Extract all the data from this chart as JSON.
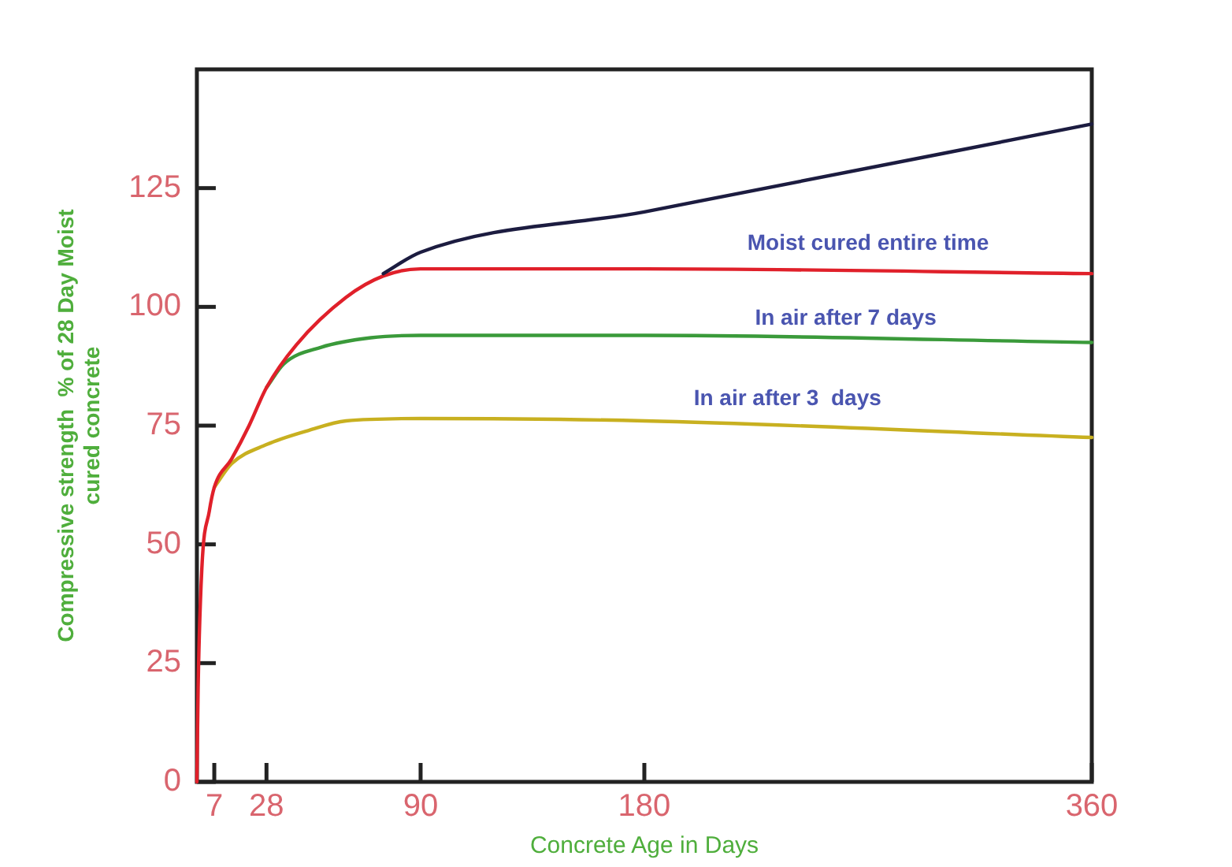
{
  "chart_data": {
    "type": "line",
    "xlabel": "Concrete Age in Days",
    "ylabel": "Compressive strength  % of 28 Day Moist cured concrete",
    "xlim": [
      0,
      360
    ],
    "xticks": [
      7,
      28,
      90,
      180,
      360
    ],
    "ylim": [
      0,
      150
    ],
    "yticks": [
      0,
      25,
      50,
      75,
      100,
      125
    ],
    "grid": false,
    "legend": false,
    "marker": "none",
    "line_style": "solid",
    "series": [
      {
        "color": "#1c1c40",
        "x": [
          75,
          90,
          180,
          360
        ],
        "values": [
          107,
          111.5,
          120,
          138.5
        ]
      },
      {
        "color": "#e0202a",
        "x": [
          0,
          0.5,
          2,
          5,
          7,
          14,
          21,
          28,
          40,
          60,
          75,
          90,
          180,
          360
        ],
        "values": [
          0,
          20,
          45,
          57,
          62,
          68,
          75,
          83,
          92,
          102,
          106.5,
          108,
          108,
          107
        ]
      },
      {
        "color": "#3a9a3a",
        "x": [
          28,
          35,
          50,
          70,
          90,
          180,
          360
        ],
        "values": [
          83,
          88,
          91.5,
          93.5,
          94,
          94,
          92.5
        ]
      },
      {
        "color": "#c8b020",
        "x": [
          7,
          14,
          28,
          45,
          60,
          90,
          180,
          360
        ],
        "values": [
          62,
          67,
          71,
          74,
          76,
          76.5,
          76,
          72.5
        ]
      }
    ],
    "annotations": [
      "Moist cured entire time",
      "In air after 7 days",
      "In air after 3  days"
    ]
  }
}
